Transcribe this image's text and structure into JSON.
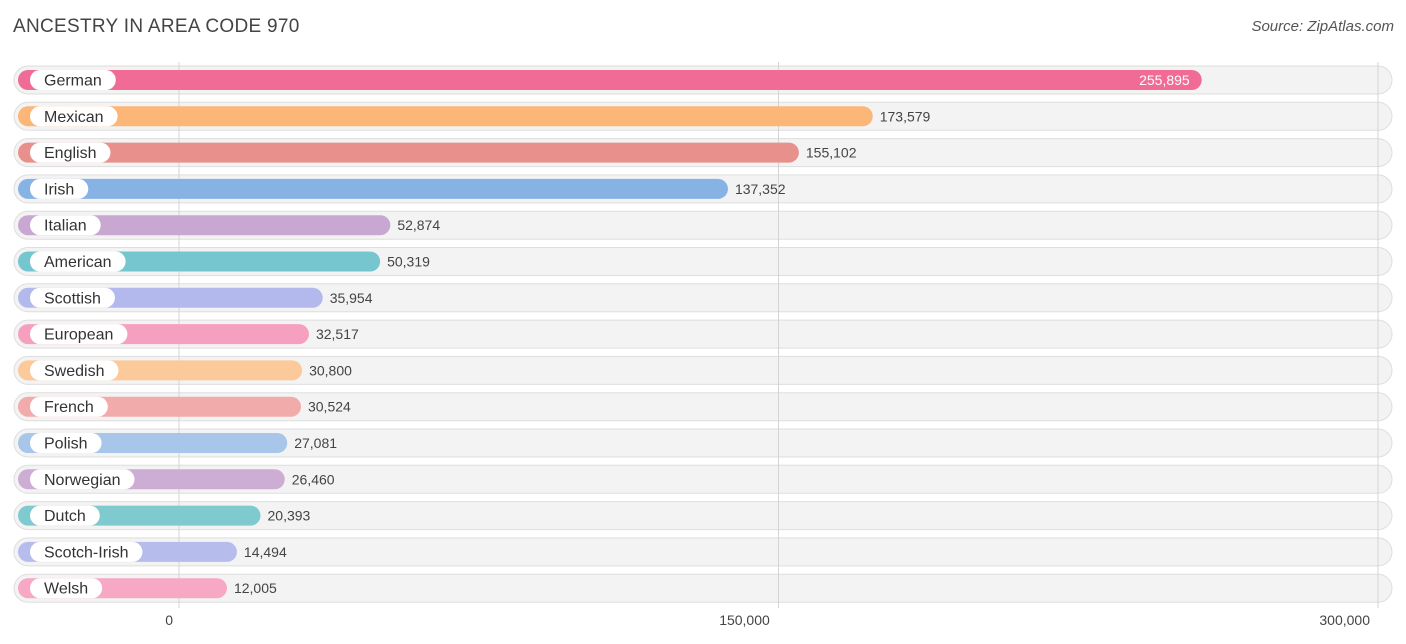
{
  "header": {
    "title": "ANCESTRY IN AREA CODE 970",
    "source": "Source: ZipAtlas.com"
  },
  "chart_data": {
    "type": "bar",
    "orientation": "horizontal",
    "title": "ANCESTRY IN AREA CODE 970",
    "xlim": [
      0,
      300000
    ],
    "ticks": [
      0,
      150000,
      300000
    ],
    "tick_labels": [
      "0",
      "150,000",
      "300,000"
    ],
    "grid": true,
    "categories": [
      "German",
      "Mexican",
      "English",
      "Irish",
      "Italian",
      "American",
      "Scottish",
      "European",
      "Swedish",
      "French",
      "Polish",
      "Norwegian",
      "Dutch",
      "Scotch-Irish",
      "Welsh"
    ],
    "values": [
      255895,
      173579,
      155102,
      137352,
      52874,
      50319,
      35954,
      32517,
      30800,
      30524,
      27081,
      26460,
      20393,
      14494,
      12005
    ],
    "value_labels": [
      "255,895",
      "173,579",
      "155,102",
      "137,352",
      "52,874",
      "50,319",
      "35,954",
      "32,517",
      "30,800",
      "30,524",
      "27,081",
      "26,460",
      "20,393",
      "14,494",
      "12,005"
    ],
    "colors": [
      "#f06b96",
      "#fbb678",
      "#e8918c",
      "#86b3e4",
      "#c8a8d0",
      "#75c6cf",
      "#b3b9ec",
      "#f6a0bf",
      "#fcc99a",
      "#f2abab",
      "#a8c6ea",
      "#cdadd3",
      "#7fcacf",
      "#b6bcec",
      "#f7a8c4"
    ]
  }
}
